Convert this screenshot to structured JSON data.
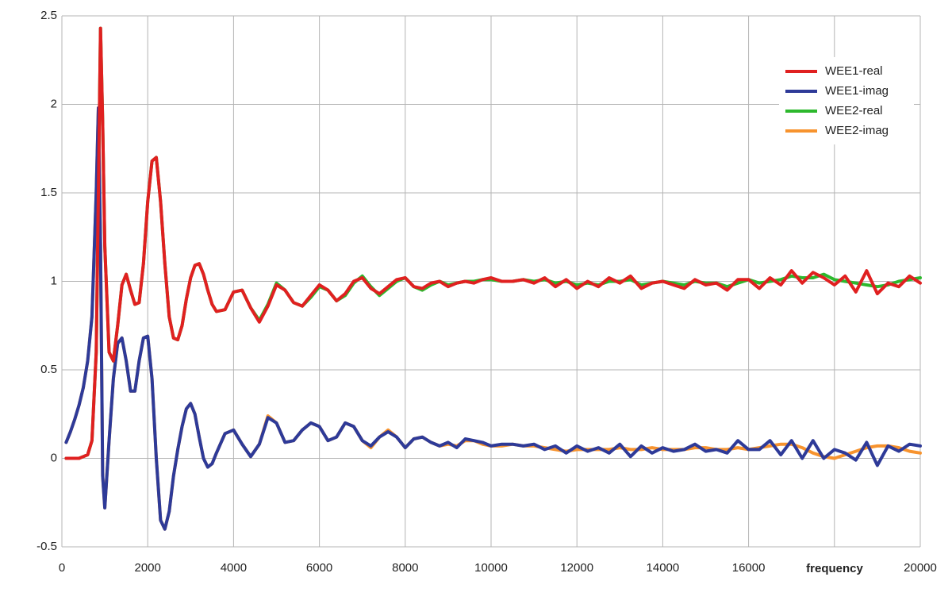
{
  "chart_data": {
    "type": "line",
    "x_label": "frequency",
    "x": [
      100,
      200,
      300,
      400,
      500,
      600,
      700,
      800,
      850,
      900,
      950,
      1000,
      1100,
      1200,
      1300,
      1400,
      1500,
      1600,
      1700,
      1800,
      1900,
      2000,
      2100,
      2200,
      2300,
      2400,
      2500,
      2600,
      2700,
      2800,
      2900,
      3000,
      3100,
      3200,
      3300,
      3400,
      3500,
      3600,
      3800,
      4000,
      4200,
      4400,
      4600,
      4800,
      5000,
      5200,
      5400,
      5600,
      5800,
      6000,
      6200,
      6400,
      6600,
      6800,
      7000,
      7200,
      7400,
      7600,
      7800,
      8000,
      8200,
      8400,
      8600,
      8800,
      9000,
      9200,
      9400,
      9600,
      9800,
      10000,
      10250,
      10500,
      10750,
      11000,
      11250,
      11500,
      11750,
      12000,
      12250,
      12500,
      12750,
      13000,
      13250,
      13500,
      13750,
      14000,
      14250,
      14500,
      14750,
      15000,
      15250,
      15500,
      15750,
      16000,
      16250,
      16500,
      16750,
      17000,
      17250,
      17500,
      17750,
      18000,
      18250,
      18500,
      18750,
      19000,
      19250,
      19500,
      19750,
      20000
    ],
    "series": [
      {
        "name": "WEE1-real",
        "color": "#e02020",
        "values": [
          0,
          0,
          0,
          0,
          0.01,
          0.02,
          0.1,
          0.6,
          1.5,
          2.43,
          1.9,
          1.2,
          0.6,
          0.55,
          0.75,
          0.98,
          1.04,
          0.95,
          0.87,
          0.88,
          1.1,
          1.45,
          1.68,
          1.7,
          1.45,
          1.1,
          0.8,
          0.68,
          0.67,
          0.75,
          0.9,
          1.02,
          1.09,
          1.1,
          1.04,
          0.95,
          0.87,
          0.83,
          0.84,
          0.94,
          0.95,
          0.85,
          0.77,
          0.86,
          0.98,
          0.95,
          0.88,
          0.86,
          0.92,
          0.98,
          0.95,
          0.89,
          0.93,
          1.0,
          1.02,
          0.96,
          0.93,
          0.97,
          1.01,
          1.02,
          0.97,
          0.96,
          0.99,
          1.0,
          0.97,
          0.99,
          1.0,
          0.99,
          1.01,
          1.02,
          1.0,
          1.0,
          1.01,
          0.99,
          1.02,
          0.97,
          1.01,
          0.96,
          1.0,
          0.97,
          1.02,
          0.99,
          1.03,
          0.96,
          0.99,
          1.0,
          0.98,
          0.96,
          1.01,
          0.98,
          0.99,
          0.95,
          1.01,
          1.01,
          0.96,
          1.02,
          0.98,
          1.06,
          0.99,
          1.05,
          1.02,
          0.98,
          1.03,
          0.94,
          1.06,
          0.93,
          0.99,
          0.97,
          1.03,
          0.99
        ]
      },
      {
        "name": "WEE1-imag",
        "color": "#2e3a98",
        "values": [
          0.09,
          0.15,
          0.22,
          0.3,
          0.4,
          0.55,
          0.8,
          1.5,
          1.98,
          1.2,
          -0.1,
          -0.28,
          0.1,
          0.45,
          0.65,
          0.68,
          0.55,
          0.38,
          0.38,
          0.55,
          0.68,
          0.69,
          0.45,
          0.0,
          -0.35,
          -0.4,
          -0.3,
          -0.1,
          0.05,
          0.18,
          0.28,
          0.31,
          0.25,
          0.12,
          0.0,
          -0.05,
          -0.03,
          0.03,
          0.14,
          0.16,
          0.08,
          0.01,
          0.08,
          0.23,
          0.2,
          0.09,
          0.1,
          0.16,
          0.2,
          0.18,
          0.1,
          0.12,
          0.2,
          0.18,
          0.1,
          0.07,
          0.12,
          0.15,
          0.12,
          0.06,
          0.11,
          0.12,
          0.09,
          0.07,
          0.09,
          0.06,
          0.11,
          0.1,
          0.09,
          0.07,
          0.08,
          0.08,
          0.07,
          0.08,
          0.05,
          0.07,
          0.03,
          0.07,
          0.04,
          0.06,
          0.03,
          0.08,
          0.01,
          0.07,
          0.03,
          0.06,
          0.04,
          0.05,
          0.08,
          0.04,
          0.05,
          0.03,
          0.1,
          0.05,
          0.05,
          0.1,
          0.02,
          0.1,
          0.0,
          0.1,
          0.0,
          0.05,
          0.03,
          -0.01,
          0.09,
          -0.04,
          0.07,
          0.04,
          0.08,
          0.07
        ]
      },
      {
        "name": "WEE2-real",
        "color": "#2db82d",
        "values": [
          0,
          0,
          0,
          0,
          0.01,
          0.02,
          0.1,
          0.6,
          1.5,
          2.43,
          1.9,
          1.2,
          0.6,
          0.55,
          0.75,
          0.98,
          1.04,
          0.95,
          0.87,
          0.88,
          1.1,
          1.45,
          1.68,
          1.7,
          1.45,
          1.1,
          0.8,
          0.68,
          0.67,
          0.75,
          0.9,
          1.02,
          1.09,
          1.1,
          1.04,
          0.95,
          0.87,
          0.83,
          0.84,
          0.94,
          0.95,
          0.85,
          0.78,
          0.87,
          0.99,
          0.95,
          0.88,
          0.86,
          0.91,
          0.97,
          0.95,
          0.89,
          0.92,
          0.99,
          1.03,
          0.97,
          0.92,
          0.96,
          1.0,
          1.02,
          0.97,
          0.95,
          0.98,
          1.0,
          0.98,
          0.99,
          1.0,
          1.0,
          1.01,
          1.01,
          1.0,
          1.0,
          1.01,
          1.0,
          1.01,
          0.99,
          1.0,
          0.98,
          0.99,
          0.98,
          1.0,
          1.0,
          1.01,
          0.98,
          0.99,
          1.0,
          0.99,
          0.98,
          1.0,
          0.99,
          0.99,
          0.97,
          0.99,
          1.01,
          0.99,
          1.0,
          1.01,
          1.03,
          1.02,
          1.02,
          1.04,
          1.01,
          1.0,
          0.99,
          0.98,
          0.97,
          0.98,
          1.0,
          1.01,
          1.02
        ]
      },
      {
        "name": "WEE2-imag",
        "color": "#f7932e",
        "values": [
          0.09,
          0.15,
          0.22,
          0.3,
          0.4,
          0.55,
          0.8,
          1.5,
          1.98,
          1.2,
          -0.1,
          -0.28,
          0.1,
          0.45,
          0.65,
          0.68,
          0.55,
          0.38,
          0.38,
          0.55,
          0.68,
          0.69,
          0.45,
          0.0,
          -0.35,
          -0.4,
          -0.3,
          -0.1,
          0.05,
          0.18,
          0.28,
          0.31,
          0.25,
          0.12,
          0.0,
          -0.05,
          -0.03,
          0.03,
          0.14,
          0.16,
          0.08,
          0.01,
          0.08,
          0.24,
          0.2,
          0.09,
          0.1,
          0.16,
          0.2,
          0.18,
          0.1,
          0.12,
          0.2,
          0.18,
          0.1,
          0.06,
          0.12,
          0.16,
          0.12,
          0.06,
          0.11,
          0.12,
          0.09,
          0.07,
          0.08,
          0.07,
          0.1,
          0.1,
          0.08,
          0.07,
          0.07,
          0.08,
          0.07,
          0.07,
          0.06,
          0.05,
          0.04,
          0.05,
          0.05,
          0.05,
          0.05,
          0.06,
          0.05,
          0.05,
          0.06,
          0.05,
          0.05,
          0.05,
          0.06,
          0.06,
          0.05,
          0.05,
          0.06,
          0.05,
          0.06,
          0.07,
          0.08,
          0.08,
          0.06,
          0.03,
          0.01,
          0.0,
          0.02,
          0.04,
          0.06,
          0.07,
          0.07,
          0.06,
          0.04,
          0.03
        ]
      }
    ],
    "xlim": [
      0,
      20000
    ],
    "xticks": [
      0,
      2000,
      4000,
      6000,
      8000,
      10000,
      12000,
      14000,
      16000,
      {
        "value": 18000,
        "label": null
      },
      20000
    ],
    "ylim": [
      -0.5,
      2.5
    ],
    "yticks": [
      -0.5,
      0,
      0.5,
      1,
      1.5,
      2,
      2.5
    ],
    "grid": true,
    "legend": "upper right"
  }
}
